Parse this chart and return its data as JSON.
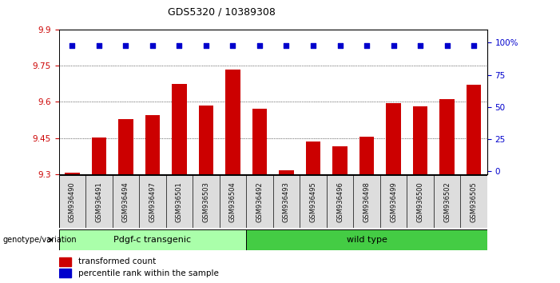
{
  "title": "GDS5320 / 10389308",
  "categories": [
    "GSM936490",
    "GSM936491",
    "GSM936494",
    "GSM936497",
    "GSM936501",
    "GSM936503",
    "GSM936504",
    "GSM936492",
    "GSM936493",
    "GSM936495",
    "GSM936496",
    "GSM936498",
    "GSM936499",
    "GSM936500",
    "GSM936502",
    "GSM936505"
  ],
  "bar_values": [
    9.305,
    9.452,
    9.53,
    9.545,
    9.675,
    9.585,
    9.735,
    9.57,
    9.315,
    9.435,
    9.415,
    9.455,
    9.595,
    9.58,
    9.61,
    9.67
  ],
  "percentile_values": [
    98,
    98,
    98,
    98,
    98,
    98,
    98,
    98,
    98,
    98,
    98,
    98,
    98,
    98,
    98,
    98
  ],
  "bar_color": "#cc0000",
  "percentile_color": "#0000cc",
  "ymin": 9.3,
  "ymax": 9.9,
  "y_ticks": [
    9.3,
    9.45,
    9.6,
    9.75,
    9.9
  ],
  "right_y_ticks": [
    0,
    25,
    50,
    75,
    100
  ],
  "right_y_tick_labels": [
    "0",
    "25",
    "50",
    "75",
    "100%"
  ],
  "group1_label": "Pdgf-c transgenic",
  "group2_label": "wild type",
  "group1_count": 7,
  "group2_count": 9,
  "group1_color": "#aaffaa",
  "group2_color": "#44cc44",
  "genotype_label": "genotype/variation",
  "legend1": "transformed count",
  "legend2": "percentile rank within the sample",
  "ytick_color": "#cc0000",
  "right_ytick_color": "#0000cc",
  "xticklabel_bg": "#dddddd",
  "xticklabel_color": "#111111"
}
